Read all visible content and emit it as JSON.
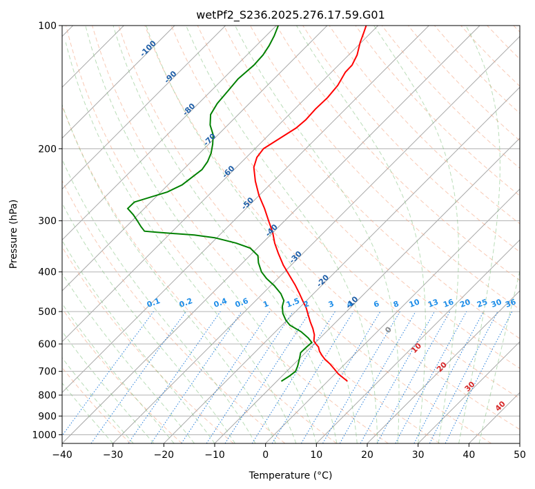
{
  "chart_data": {
    "type": "line",
    "title": "wetPf2_S236.2025.276.17.59.G01",
    "xlabel": "Temperature (°C)",
    "ylabel": "Pressure (hPa)",
    "xlim": [
      -40,
      50
    ],
    "ylim": [
      1050,
      100
    ],
    "y_scale": "log",
    "x_ticks": [
      -40,
      -30,
      -20,
      -10,
      0,
      10,
      20,
      30,
      40,
      50
    ],
    "y_ticks": [
      100,
      200,
      300,
      400,
      500,
      600,
      700,
      800,
      900,
      1000
    ],
    "grid": true,
    "isotherm_labels": [
      {
        "text": "-100",
        "t": -100,
        "p": 115
      },
      {
        "text": "-90",
        "t": -90,
        "p": 135
      },
      {
        "text": "-80",
        "t": -80,
        "p": 162
      },
      {
        "text": "-70",
        "t": -70,
        "p": 192
      },
      {
        "text": "-60",
        "t": -60,
        "p": 230
      },
      {
        "text": "-50",
        "t": -50,
        "p": 275
      },
      {
        "text": "-40",
        "t": -40,
        "p": 320
      },
      {
        "text": "-30",
        "t": -30,
        "p": 372
      },
      {
        "text": "-20",
        "t": -20,
        "p": 425
      },
      {
        "text": "-10",
        "t": -10,
        "p": 480
      }
    ],
    "mixing_ratio_labels": [
      "0.1",
      "0.2",
      "0.4",
      "0.6",
      "1",
      "1.5",
      "2",
      "3",
      "4",
      "6",
      "8",
      "10",
      "13",
      "16",
      "20",
      "25",
      "30",
      "36"
    ],
    "wetbulb_labels": [
      {
        "text": "0",
        "t": 24.5,
        "p": 560
      },
      {
        "text": "10",
        "t": 30,
        "p": 620
      },
      {
        "text": "20",
        "t": 35,
        "p": 690
      },
      {
        "text": "30",
        "t": 40.5,
        "p": 770
      },
      {
        "text": "40",
        "t": 46.5,
        "p": 860
      }
    ],
    "series": [
      {
        "color": "#ff0000",
        "points": [
          [
            16.1,
            740
          ],
          [
            14.3,
            710
          ],
          [
            13.5,
            690
          ],
          [
            12.6,
            670
          ],
          [
            11.7,
            655
          ],
          [
            11.1,
            640
          ],
          [
            10.6,
            625
          ],
          [
            10.4,
            610
          ],
          [
            9.9,
            600
          ],
          [
            9.5,
            590
          ],
          [
            9.6,
            570
          ],
          [
            9.3,
            550
          ],
          [
            8.8,
            530
          ],
          [
            8.4,
            510
          ],
          [
            8.0,
            490
          ],
          [
            7.3,
            470
          ],
          [
            6.6,
            450
          ],
          [
            5.8,
            430
          ],
          [
            4.8,
            410
          ],
          [
            3.5,
            385
          ],
          [
            2.5,
            360
          ],
          [
            1.8,
            340
          ],
          [
            1.4,
            320
          ],
          [
            0.6,
            300
          ],
          [
            -0.2,
            280
          ],
          [
            -1.3,
            260
          ],
          [
            -2.0,
            240
          ],
          [
            -2.3,
            222
          ],
          [
            -1.7,
            210
          ],
          [
            -0.4,
            200
          ],
          [
            3.0,
            188
          ],
          [
            6.0,
            178
          ],
          [
            7.9,
            170
          ],
          [
            9.8,
            160
          ],
          [
            12.2,
            150
          ],
          [
            14.2,
            140
          ],
          [
            15.7,
            130
          ],
          [
            17.0,
            125
          ],
          [
            18.0,
            118
          ],
          [
            18.6,
            110
          ],
          [
            19.2,
            105
          ],
          [
            19.8,
            100
          ]
        ]
      },
      {
        "color": "#008000",
        "points": [
          [
            3.1,
            740
          ],
          [
            4.6,
            720
          ],
          [
            5.9,
            700
          ],
          [
            6.3,
            680
          ],
          [
            6.7,
            650
          ],
          [
            6.9,
            630
          ],
          [
            8.1,
            610
          ],
          [
            9.1,
            595
          ],
          [
            8.4,
            580
          ],
          [
            7.0,
            560
          ],
          [
            4.8,
            540
          ],
          [
            4.0,
            525
          ],
          [
            3.4,
            505
          ],
          [
            3.3,
            485
          ],
          [
            3.6,
            470
          ],
          [
            3.0,
            452
          ],
          [
            1.7,
            432
          ],
          [
            0.2,
            415
          ],
          [
            -0.8,
            400
          ],
          [
            -1.4,
            380
          ],
          [
            -1.5,
            365
          ],
          [
            -3.0,
            350
          ],
          [
            -5.8,
            340
          ],
          [
            -10.0,
            330
          ],
          [
            -14.0,
            325
          ],
          [
            -21.4,
            320
          ],
          [
            -23.8,
            318
          ],
          [
            -24.5,
            310
          ],
          [
            -25.2,
            300
          ],
          [
            -26.0,
            290
          ],
          [
            -27.1,
            280
          ],
          [
            -25.8,
            270
          ],
          [
            -19.3,
            255
          ],
          [
            -16.4,
            245
          ],
          [
            -14.5,
            235
          ],
          [
            -12.5,
            225
          ],
          [
            -11.4,
            215
          ],
          [
            -10.7,
            205
          ],
          [
            -10.4,
            195
          ],
          [
            -10.3,
            185
          ],
          [
            -10.9,
            175
          ],
          [
            -10.8,
            165
          ],
          [
            -9.5,
            155
          ],
          [
            -7.5,
            145
          ],
          [
            -5.4,
            135
          ],
          [
            -2.3,
            125
          ],
          [
            -0.5,
            118
          ],
          [
            0.7,
            112
          ],
          [
            1.7,
            106
          ],
          [
            2.5,
            100
          ]
        ]
      }
    ]
  }
}
